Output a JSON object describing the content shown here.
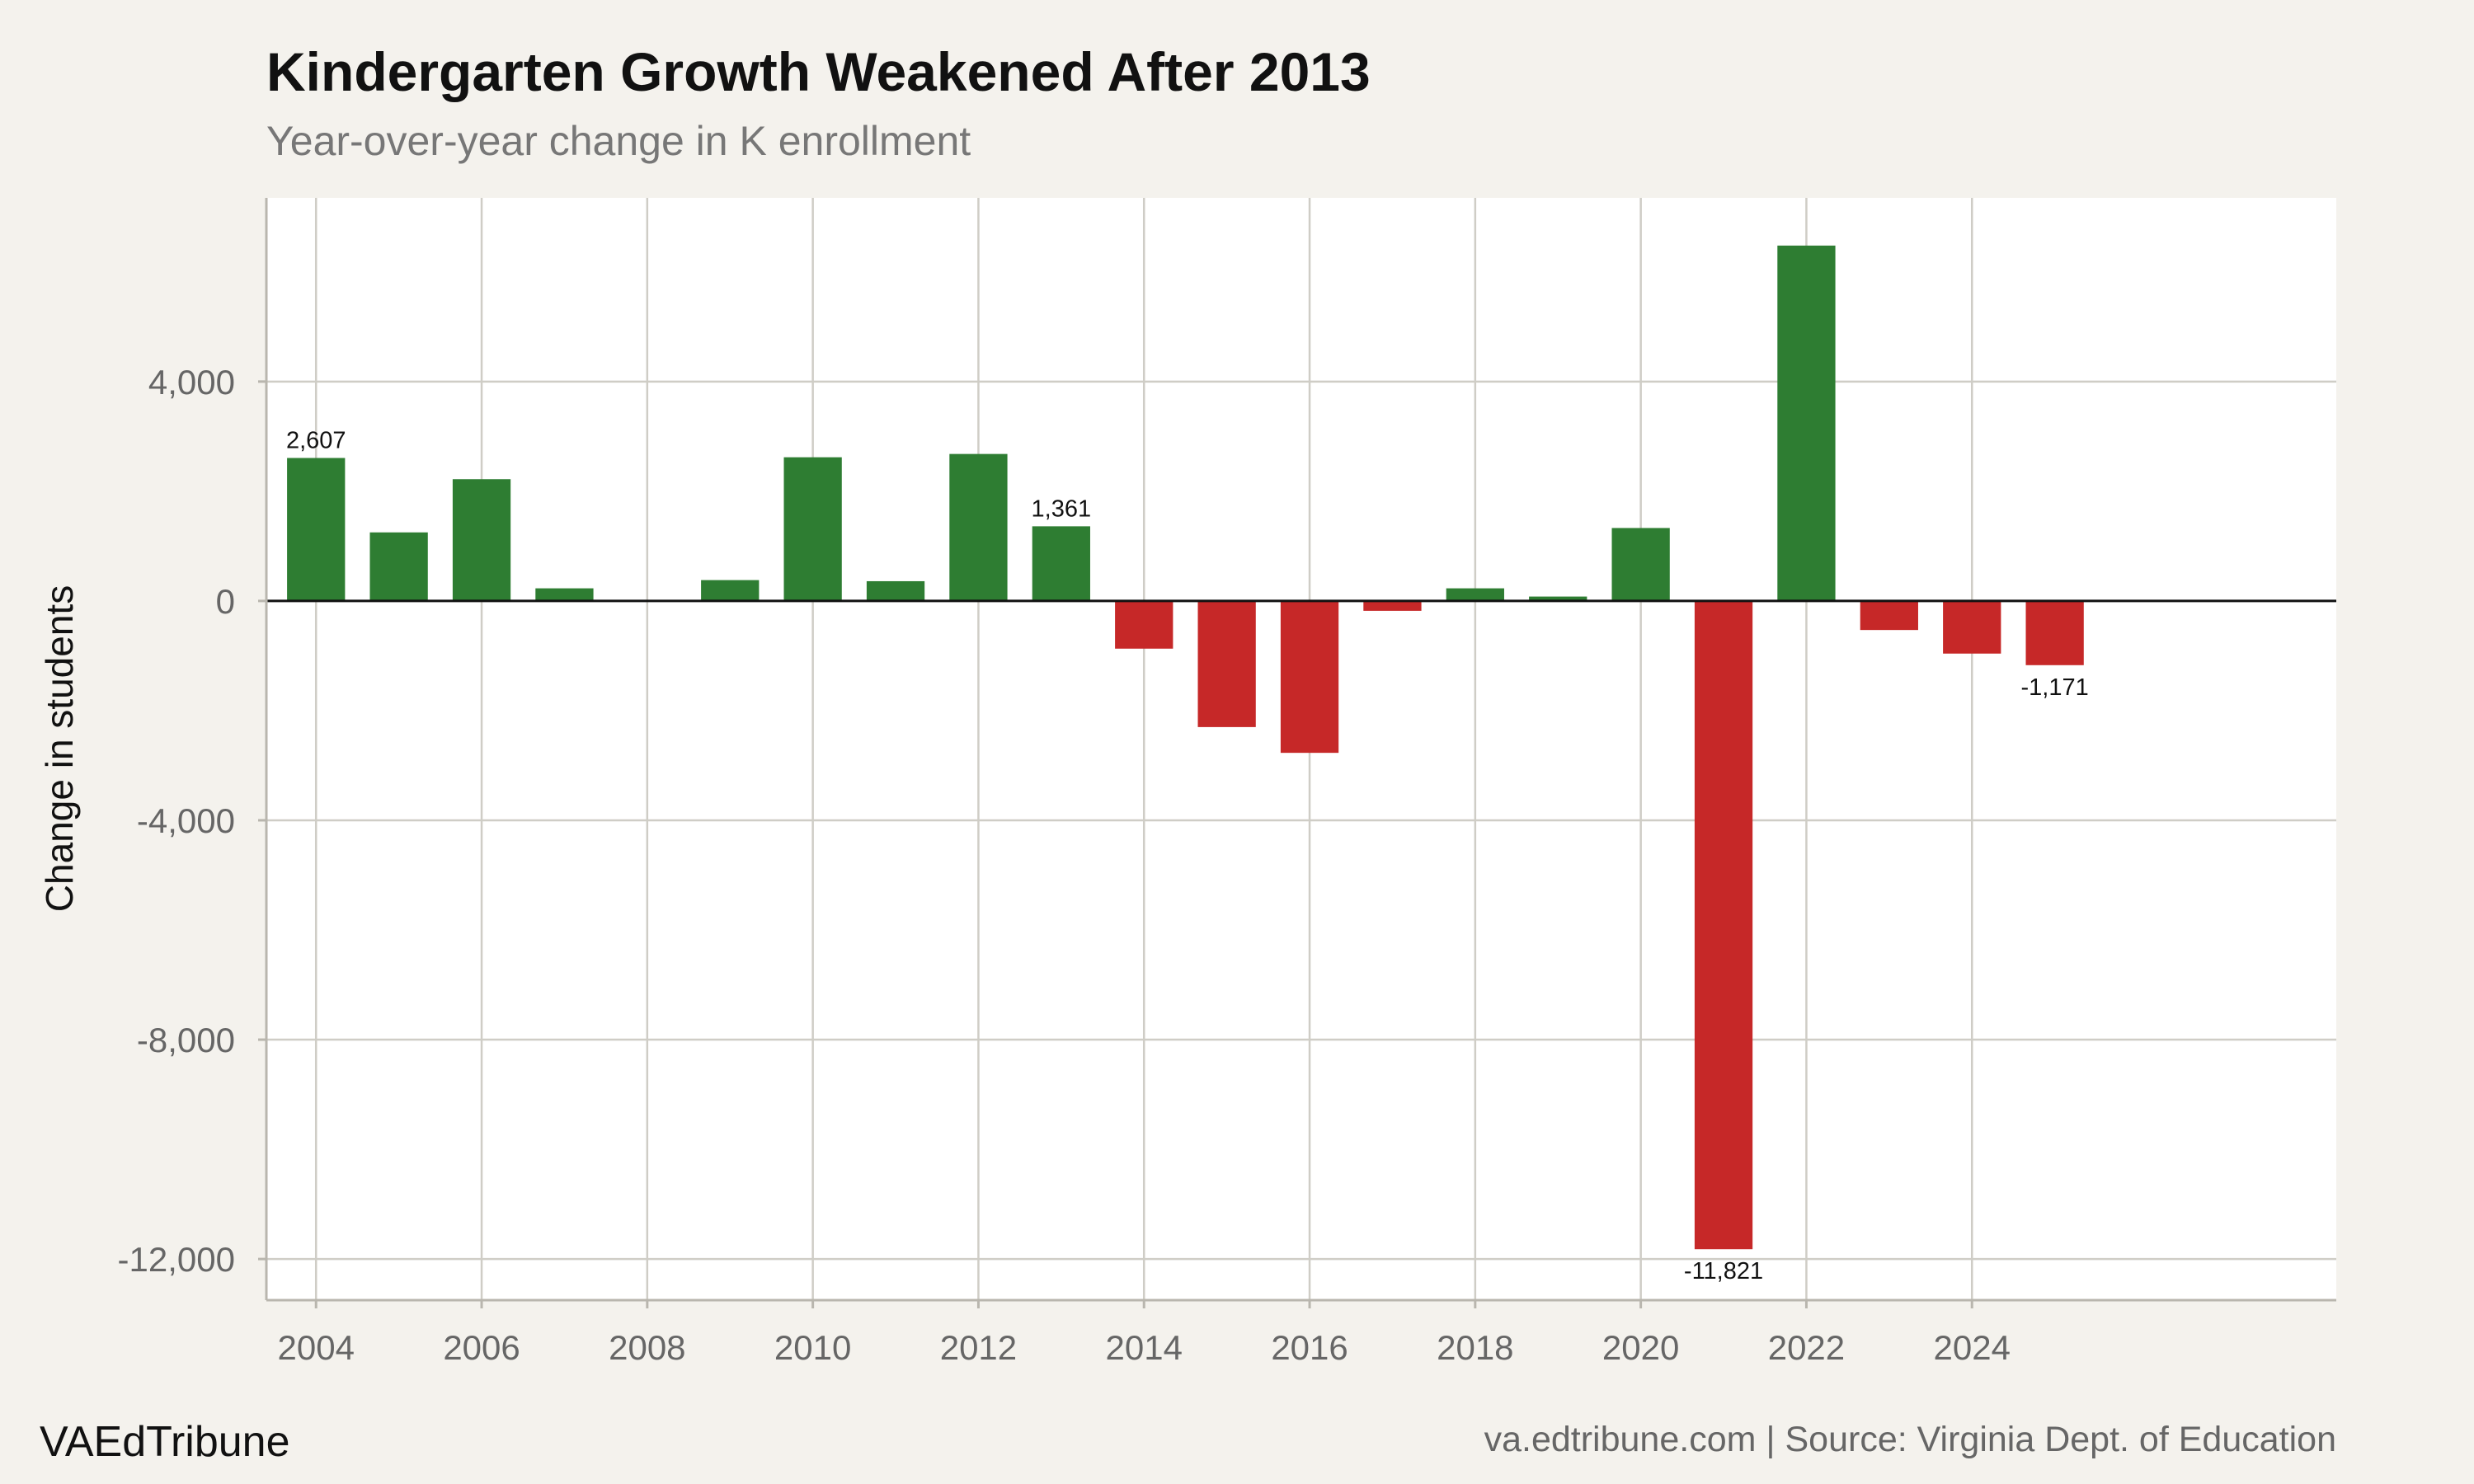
{
  "chart_data": {
    "type": "bar",
    "title": "Kindergarten Growth Weakened After 2013",
    "subtitle": "Year-over-year change in K enrollment",
    "xlabel": "",
    "ylabel": "Change in students",
    "x": [
      2004,
      2005,
      2006,
      2007,
      2008,
      2009,
      2010,
      2011,
      2012,
      2013,
      2014,
      2015,
      2016,
      2017,
      2018,
      2019,
      2020,
      2021,
      2022,
      2023,
      2024,
      2025
    ],
    "values": [
      2607,
      1250,
      2220,
      230,
      0,
      380,
      2620,
      360,
      2680,
      1361,
      -870,
      -2300,
      -2770,
      -180,
      230,
      80,
      1330,
      -11821,
      6480,
      -530,
      -960,
      -1171
    ],
    "xlim": [
      2003.4,
      2028.4
    ],
    "ylim": [
      -12750,
      7350
    ],
    "x_ticks": [
      2004,
      2006,
      2008,
      2010,
      2012,
      2014,
      2016,
      2018,
      2020,
      2022,
      2024
    ],
    "x_tick_labels": [
      "2004",
      "2006",
      "2008",
      "2010",
      "2012",
      "2014",
      "2016",
      "2018",
      "2020",
      "2022",
      "2024"
    ],
    "y_ticks": [
      4000,
      0,
      -4000,
      -8000,
      -12000
    ],
    "y_tick_labels": [
      "4,000",
      "0",
      "-4,000",
      "-8,000",
      "-12,000"
    ],
    "annotations": [
      {
        "x": 2004,
        "value": 2607,
        "text": "2,607"
      },
      {
        "x": 2013,
        "value": 1361,
        "text": "1,361"
      },
      {
        "x": 2021,
        "value": -11821,
        "text": "-11,821"
      },
      {
        "x": 2025,
        "value": -1171,
        "text": "-1,171"
      }
    ],
    "grid": true,
    "legend": "none",
    "colors": {
      "positive": "#2e7d32",
      "negative": "#c62828",
      "grid": "#cfcdc6",
      "axis": "#b9b6ae",
      "zero_line": "#111111",
      "panel": "#ffffff",
      "background": "#f4f2ed"
    }
  },
  "footer": {
    "brand": "VAEdTribune",
    "source": "va.edtribune.com | Source: Virginia Dept. of Education"
  }
}
